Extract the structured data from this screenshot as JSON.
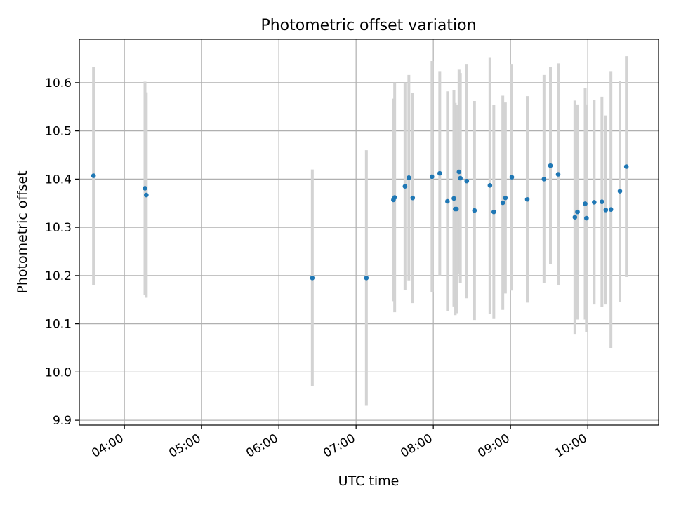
{
  "chart_data": {
    "type": "scatter",
    "title": "Photometric offset variation",
    "xlabel": "UTC time",
    "ylabel": "Photometric offset",
    "xlim": [
      "03:25",
      "10:55"
    ],
    "ylim": [
      9.89,
      10.69
    ],
    "xticks": [
      "04:00",
      "05:00",
      "06:00",
      "07:00",
      "08:00",
      "09:00",
      "10:00"
    ],
    "yticks": [
      "9.9",
      "10.0",
      "10.1",
      "10.2",
      "10.3",
      "10.4",
      "10.5",
      "10.6"
    ],
    "grid": true,
    "colors": {
      "points": "#1f77b4",
      "errorbars": "#d3d3d3",
      "grid": "#b0b0b0"
    },
    "points": [
      {
        "x": "03:36",
        "y": 10.407,
        "err": 0.226
      },
      {
        "x": "04:16",
        "y": 10.381,
        "err": 0.221
      },
      {
        "x": "04:17",
        "y": 10.367,
        "err": 0.213
      },
      {
        "x": "06:26",
        "y": 10.195,
        "err": 0.225
      },
      {
        "x": "07:08",
        "y": 10.195,
        "err": 0.265
      },
      {
        "x": "07:29",
        "y": 10.357,
        "err": 0.21
      },
      {
        "x": "07:30",
        "y": 10.362,
        "err": 0.238
      },
      {
        "x": "07:38",
        "y": 10.385,
        "err": 0.215
      },
      {
        "x": "07:41",
        "y": 10.403,
        "err": 0.213
      },
      {
        "x": "07:44",
        "y": 10.361,
        "err": 0.218
      },
      {
        "x": "07:59",
        "y": 10.405,
        "err": 0.24
      },
      {
        "x": "08:05",
        "y": 10.412,
        "err": 0.212
      },
      {
        "x": "08:11",
        "y": 10.354,
        "err": 0.228
      },
      {
        "x": "08:16",
        "y": 10.36,
        "err": 0.224
      },
      {
        "x": "08:17",
        "y": 10.338,
        "err": 0.22
      },
      {
        "x": "08:18",
        "y": 10.338,
        "err": 0.216
      },
      {
        "x": "08:20",
        "y": 10.415,
        "err": 0.212
      },
      {
        "x": "08:21",
        "y": 10.402,
        "err": 0.218
      },
      {
        "x": "08:26",
        "y": 10.396,
        "err": 0.243
      },
      {
        "x": "08:32",
        "y": 10.335,
        "err": 0.227
      },
      {
        "x": "08:44",
        "y": 10.387,
        "err": 0.266
      },
      {
        "x": "08:47",
        "y": 10.332,
        "err": 0.222
      },
      {
        "x": "08:54",
        "y": 10.351,
        "err": 0.222
      },
      {
        "x": "08:56",
        "y": 10.361,
        "err": 0.198
      },
      {
        "x": "09:01",
        "y": 10.404,
        "err": 0.235
      },
      {
        "x": "09:13",
        "y": 10.358,
        "err": 0.214
      },
      {
        "x": "09:26",
        "y": 10.4,
        "err": 0.216
      },
      {
        "x": "09:31",
        "y": 10.428,
        "err": 0.204
      },
      {
        "x": "09:37",
        "y": 10.41,
        "err": 0.23
      },
      {
        "x": "09:50",
        "y": 10.321,
        "err": 0.242
      },
      {
        "x": "09:52",
        "y": 10.332,
        "err": 0.223
      },
      {
        "x": "09:58",
        "y": 10.349,
        "err": 0.24
      },
      {
        "x": "09:59",
        "y": 10.319,
        "err": 0.236
      },
      {
        "x": "10:05",
        "y": 10.352,
        "err": 0.212
      },
      {
        "x": "10:11",
        "y": 10.353,
        "err": 0.218
      },
      {
        "x": "10:14",
        "y": 10.336,
        "err": 0.196
      },
      {
        "x": "10:18",
        "y": 10.337,
        "err": 0.287
      },
      {
        "x": "10:25",
        "y": 10.375,
        "err": 0.229
      },
      {
        "x": "10:30",
        "y": 10.426,
        "err": 0.229
      }
    ]
  }
}
